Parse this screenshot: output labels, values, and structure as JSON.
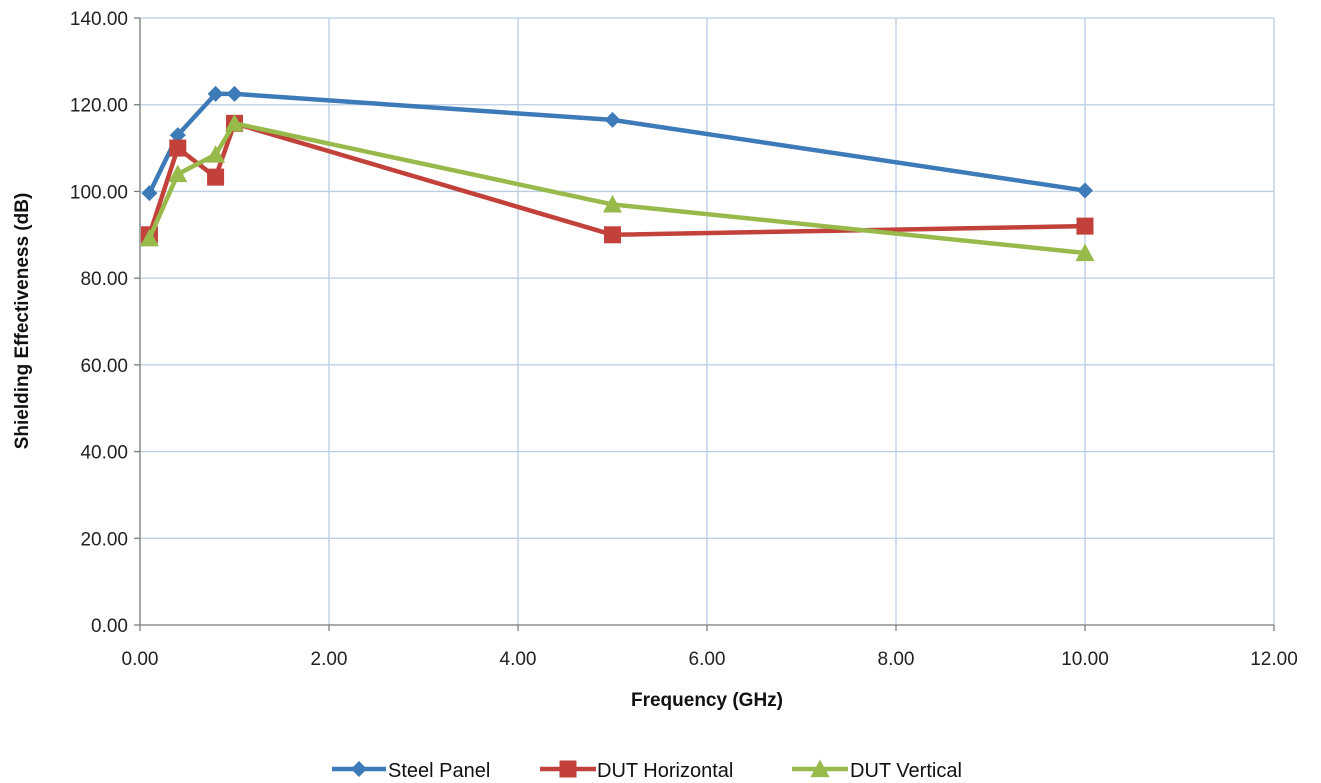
{
  "chart_data": {
    "type": "scatter",
    "title": "",
    "xlabel": "Frequency (GHz)",
    "ylabel": "Shielding Effectiveness (dB)",
    "xlim": [
      0,
      12
    ],
    "ylim": [
      0,
      140
    ],
    "x_ticks": [
      "0.00",
      "2.00",
      "4.00",
      "6.00",
      "8.00",
      "10.00",
      "12.00"
    ],
    "y_ticks": [
      "0.00",
      "20.00",
      "40.00",
      "60.00",
      "80.00",
      "100.00",
      "120.00",
      "140.00"
    ],
    "grid": true,
    "legend_position": "bottom",
    "series": [
      {
        "name": "Steel Panel",
        "color": "#3d7ab8",
        "marker": "diamond",
        "x": [
          0.1,
          0.4,
          0.8,
          1.0,
          5.0,
          10.0
        ],
        "y": [
          99.6,
          113.0,
          122.5,
          122.5,
          116.5,
          100.2
        ]
      },
      {
        "name": "DUT Horizontal",
        "color": "#c2413a",
        "marker": "square",
        "x": [
          0.1,
          0.4,
          0.8,
          1.0,
          5.0,
          10.0
        ],
        "y": [
          90.0,
          110.0,
          103.3,
          115.7,
          90.0,
          92.0
        ]
      },
      {
        "name": "DUT Vertical",
        "color": "#97ba4b",
        "marker": "triangle",
        "x": [
          0.1,
          0.4,
          0.8,
          1.0,
          5.0,
          10.0
        ],
        "y": [
          89.2,
          104.0,
          108.5,
          115.7,
          97.0,
          85.8
        ]
      }
    ]
  }
}
